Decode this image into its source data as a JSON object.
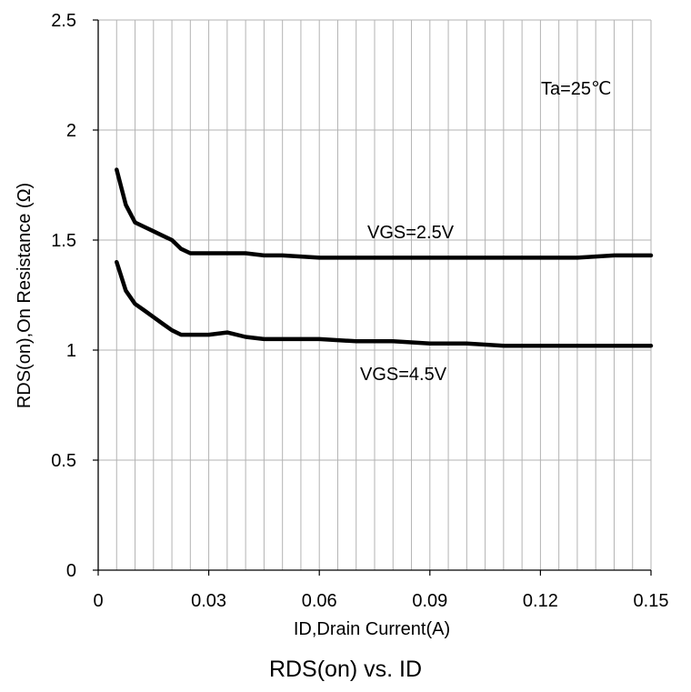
{
  "chart_data": {
    "type": "line",
    "title": "RDS(on) vs. ID",
    "xlabel": "ID,Drain Current(A)",
    "ylabel": "RDS(on),On Resistance (Ω)",
    "xlim": [
      0,
      0.15
    ],
    "ylim": [
      0,
      2.5
    ],
    "xticks": [
      "0",
      "0.03",
      "0.06",
      "0.09",
      "0.12",
      "0.15"
    ],
    "yticks": [
      "0",
      "0.5",
      "1",
      "1.5",
      "2",
      "2.5"
    ],
    "grid": true,
    "annotation": "Ta=25℃",
    "series": [
      {
        "name": "VGS=2.5V",
        "x": [
          0.005,
          0.0075,
          0.01,
          0.0125,
          0.015,
          0.0175,
          0.02,
          0.0225,
          0.025,
          0.03,
          0.035,
          0.04,
          0.045,
          0.05,
          0.06,
          0.07,
          0.08,
          0.09,
          0.1,
          0.11,
          0.12,
          0.13,
          0.14,
          0.15
        ],
        "y": [
          1.82,
          1.66,
          1.58,
          1.56,
          1.54,
          1.52,
          1.5,
          1.46,
          1.44,
          1.44,
          1.44,
          1.44,
          1.43,
          1.43,
          1.42,
          1.42,
          1.42,
          1.42,
          1.42,
          1.42,
          1.42,
          1.42,
          1.43,
          1.43
        ]
      },
      {
        "name": "VGS=4.5V",
        "x": [
          0.005,
          0.0075,
          0.01,
          0.0125,
          0.015,
          0.0175,
          0.02,
          0.0225,
          0.025,
          0.03,
          0.035,
          0.04,
          0.045,
          0.05,
          0.06,
          0.07,
          0.08,
          0.09,
          0.1,
          0.11,
          0.12,
          0.13,
          0.14,
          0.15
        ],
        "y": [
          1.4,
          1.27,
          1.21,
          1.18,
          1.15,
          1.12,
          1.09,
          1.07,
          1.07,
          1.07,
          1.08,
          1.06,
          1.05,
          1.05,
          1.05,
          1.04,
          1.04,
          1.03,
          1.03,
          1.02,
          1.02,
          1.02,
          1.02,
          1.02
        ]
      }
    ]
  }
}
